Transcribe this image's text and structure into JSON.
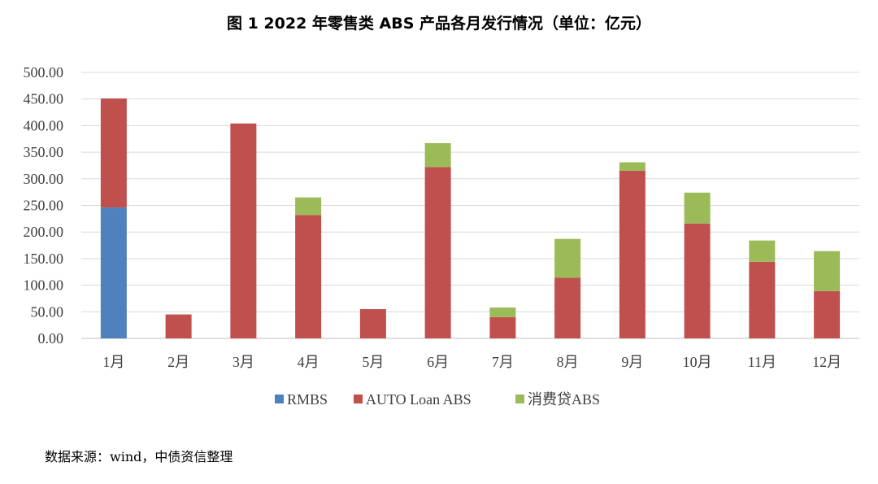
{
  "chart_data": {
    "type": "bar",
    "stacked": true,
    "title": "图 1 2022 年零售类 ABS 产品各月发行情况（单位：亿元）",
    "categories": [
      "1月",
      "2月",
      "3月",
      "4月",
      "5月",
      "6月",
      "7月",
      "8月",
      "9月",
      "10月",
      "11月",
      "12月"
    ],
    "series": [
      {
        "name": "RMBS",
        "color": "#4f81bd",
        "values": [
          246,
          0,
          0,
          0,
          0,
          0,
          0,
          0,
          0,
          0,
          0,
          0
        ]
      },
      {
        "name": "AUTO Loan ABS",
        "color": "#c0504d",
        "values": [
          205,
          45,
          404,
          232,
          55,
          322,
          40,
          114,
          315,
          216,
          144,
          89
        ]
      },
      {
        "name": "消费贷ABS",
        "color": "#9bbb59",
        "values": [
          0,
          0,
          0,
          33,
          0,
          45,
          18,
          73,
          16,
          58,
          40,
          75
        ]
      }
    ],
    "yticks": [
      "0.00",
      "50.00",
      "100.00",
      "150.00",
      "200.00",
      "250.00",
      "300.00",
      "350.00",
      "400.00",
      "450.00",
      "500.00"
    ],
    "ylim": [
      0,
      500
    ],
    "grid": true,
    "legend_position": "bottom"
  },
  "source_note": "数据来源：wind，中债资信整理"
}
